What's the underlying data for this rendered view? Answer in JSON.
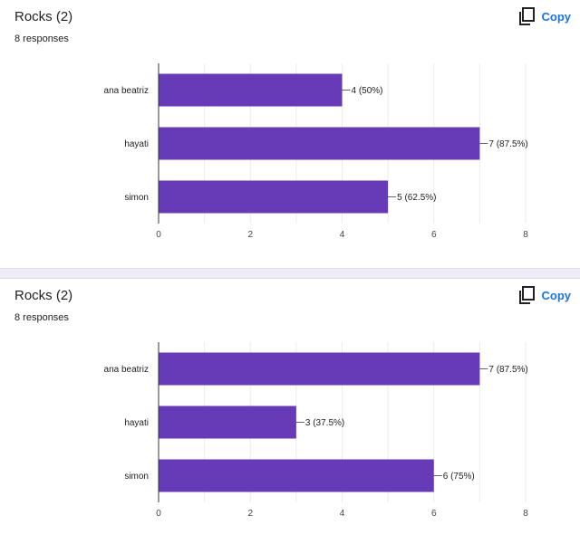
{
  "copy_label": "Copy",
  "colors": {
    "bar": "#673ab7",
    "grid": "#ebebeb",
    "axis": "#333333",
    "accent": "#1a73e8"
  },
  "questions": [
    {
      "title": "Rocks (2)",
      "responses": "8 responses",
      "copy_icon": "copy-icon"
    },
    {
      "title": "Rocks (2)",
      "responses": "8 responses",
      "copy_icon": "copy-icon"
    }
  ],
  "chart_data": [
    {
      "type": "bar",
      "orientation": "horizontal",
      "categories": [
        "ana beatriz",
        "hayati",
        "simon"
      ],
      "values": [
        4,
        7,
        5
      ],
      "data_labels": [
        "4 (50%)",
        "7 (87.5%)",
        "5 (62.5%)"
      ],
      "xticks": [
        "0",
        "2",
        "4",
        "6",
        "8"
      ],
      "xlim": [
        0,
        8
      ],
      "grid": true
    },
    {
      "type": "bar",
      "orientation": "horizontal",
      "categories": [
        "ana beatriz",
        "hayati",
        "simon"
      ],
      "values": [
        7,
        3,
        6
      ],
      "data_labels": [
        "7 (87.5%)",
        "3 (37.5%)",
        "6 (75%)"
      ],
      "xticks": [
        "0",
        "2",
        "4",
        "6",
        "8"
      ],
      "xlim": [
        0,
        8
      ],
      "grid": true
    }
  ]
}
